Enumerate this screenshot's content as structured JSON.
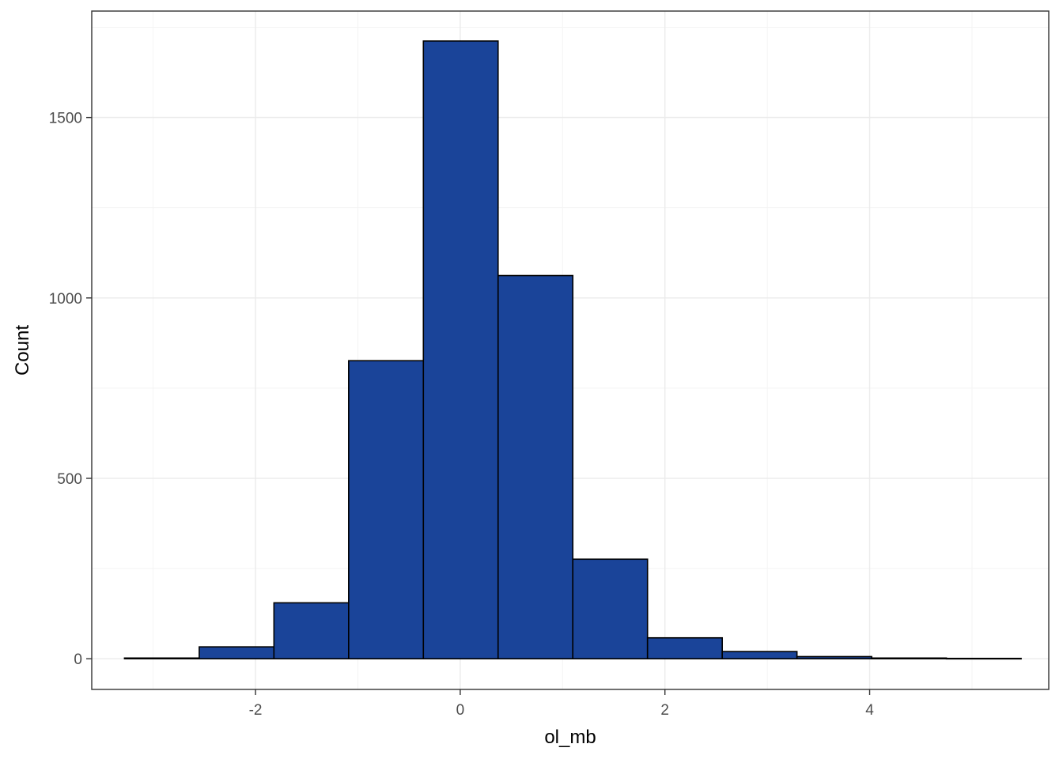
{
  "chart_data": {
    "type": "bar",
    "subtype": "histogram",
    "title": "",
    "xlabel": "ol_mb",
    "ylabel": "Count",
    "xlim": [
      -3.6,
      5.75
    ],
    "ylim": [
      -85,
      1795
    ],
    "x_ticks": [
      {
        "value": -2,
        "label": "-2"
      },
      {
        "value": 0,
        "label": "0"
      },
      {
        "value": 2,
        "label": "2"
      },
      {
        "value": 4,
        "label": "4"
      }
    ],
    "y_ticks": [
      {
        "value": 0,
        "label": "0"
      },
      {
        "value": 500,
        "label": "500"
      },
      {
        "value": 1000,
        "label": "1000"
      },
      {
        "value": 1500,
        "label": "1500"
      }
    ],
    "grid": true,
    "bin_edges": [
      -3.28,
      -2.55,
      -1.82,
      -1.09,
      -0.36,
      0.37,
      1.1,
      1.83,
      2.56,
      3.29,
      4.02,
      4.75,
      5.48
    ],
    "counts": [
      2,
      33,
      155,
      826,
      1712,
      1062,
      276,
      58,
      20,
      6,
      2,
      1
    ],
    "fill_color": "#1a4499",
    "edge_color": "#000000"
  }
}
